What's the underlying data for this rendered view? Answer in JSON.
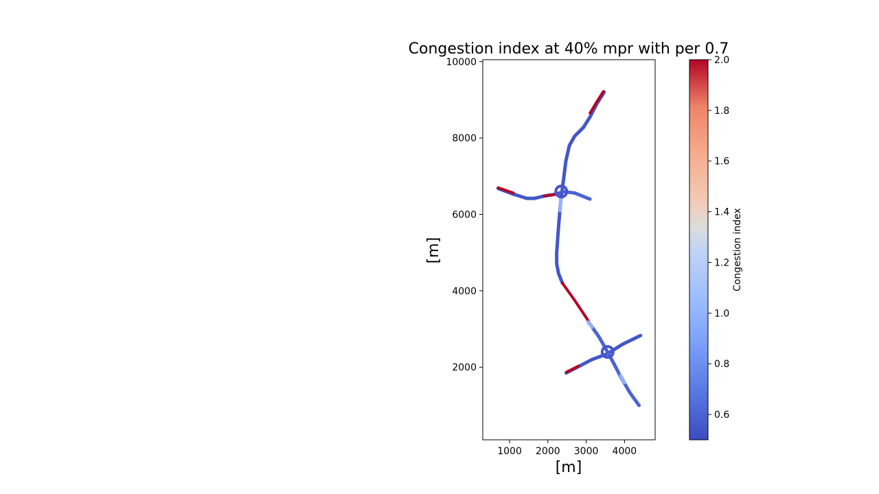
{
  "chart_data": {
    "type": "line",
    "title": "Congestion index at 40% mpr with per 0.7",
    "xlabel": "[m]",
    "ylabel": "[m]",
    "xlim": [
      300,
      4800
    ],
    "ylim": [
      100,
      10050
    ],
    "x_ticks": [
      1000,
      2000,
      3000,
      4000
    ],
    "y_ticks": [
      2000,
      4000,
      6000,
      8000,
      10000
    ],
    "grid": false,
    "colorbar": {
      "label": "Congestion index",
      "colormap": "coolwarm",
      "range": [
        0.5,
        2.0
      ],
      "ticks": [
        0.6,
        0.8,
        1.0,
        1.2,
        1.4,
        1.6,
        1.8,
        2.0
      ],
      "tick_labels": [
        "0.6",
        "0.8",
        "1.0",
        "1.2",
        "1.4",
        "1.6",
        "1.8",
        "2.0"
      ]
    },
    "series": [
      {
        "points": [
          [
            3470,
            9200
          ],
          [
            3280,
            8900
          ],
          [
            3100,
            8550
          ],
          [
            2930,
            8280
          ],
          [
            2700,
            8050
          ],
          [
            2560,
            7800
          ],
          [
            2470,
            7400
          ],
          [
            2420,
            7000
          ],
          [
            2380,
            6700
          ]
        ],
        "value": 0.55
      },
      {
        "points": [
          [
            3450,
            9220
          ],
          [
            3280,
            8950
          ],
          [
            3100,
            8650
          ]
        ],
        "value": 2.0
      },
      {
        "points": [
          [
            2380,
            6700
          ],
          [
            2330,
            6300
          ],
          [
            2280,
            5700
          ],
          [
            2230,
            5000
          ],
          [
            2230,
            4700
          ],
          [
            2280,
            4450
          ],
          [
            2380,
            4200
          ]
        ],
        "value": 0.55
      },
      {
        "points": [
          [
            2340,
            6450
          ],
          [
            2320,
            6100
          ]
        ],
        "value": 1.0
      },
      {
        "points": [
          [
            2380,
            4200
          ],
          [
            2700,
            3750
          ],
          [
            3000,
            3300
          ],
          [
            3120,
            3100
          ]
        ],
        "value": 2.0
      },
      {
        "points": [
          [
            3120,
            3100
          ],
          [
            3330,
            2800
          ],
          [
            3530,
            2450
          ]
        ],
        "value": 0.6
      },
      {
        "points": [
          [
            700,
            6680
          ],
          [
            1100,
            6530
          ],
          [
            1450,
            6420
          ],
          [
            1650,
            6420
          ],
          [
            1900,
            6480
          ],
          [
            2150,
            6520
          ],
          [
            2380,
            6580
          ]
        ],
        "value": 0.55
      },
      {
        "points": [
          [
            700,
            6700
          ],
          [
            1100,
            6560
          ]
        ],
        "value": 2.0
      },
      {
        "points": [
          [
            1900,
            6480
          ],
          [
            2180,
            6520
          ]
        ],
        "value": 2.0
      },
      {
        "points": [
          [
            2380,
            6600
          ],
          [
            2700,
            6560
          ],
          [
            3100,
            6400
          ]
        ],
        "value": 0.6
      },
      {
        "points": [
          [
            4420,
            2830
          ],
          [
            3950,
            2600
          ],
          [
            3550,
            2350
          ],
          [
            3150,
            2200
          ],
          [
            2480,
            1850
          ]
        ],
        "value": 0.55
      },
      {
        "points": [
          [
            2480,
            1870
          ],
          [
            2800,
            2030
          ]
        ],
        "value": 2.0
      },
      {
        "points": [
          [
            3530,
            2450
          ],
          [
            3720,
            2100
          ],
          [
            3900,
            1750
          ],
          [
            4150,
            1320
          ],
          [
            4380,
            1000
          ]
        ],
        "value": 0.6
      },
      {
        "points": [
          [
            3900,
            1780
          ],
          [
            4000,
            1600
          ]
        ],
        "value": 1.0
      },
      {
        "points": [
          [
            3050,
            3180
          ],
          [
            3150,
            3050
          ]
        ],
        "value": 1.0
      }
    ],
    "junctions": [
      {
        "x": 2350,
        "y": 6600,
        "value": 0.55
      },
      {
        "x": 3560,
        "y": 2400,
        "value": 0.55
      }
    ]
  }
}
